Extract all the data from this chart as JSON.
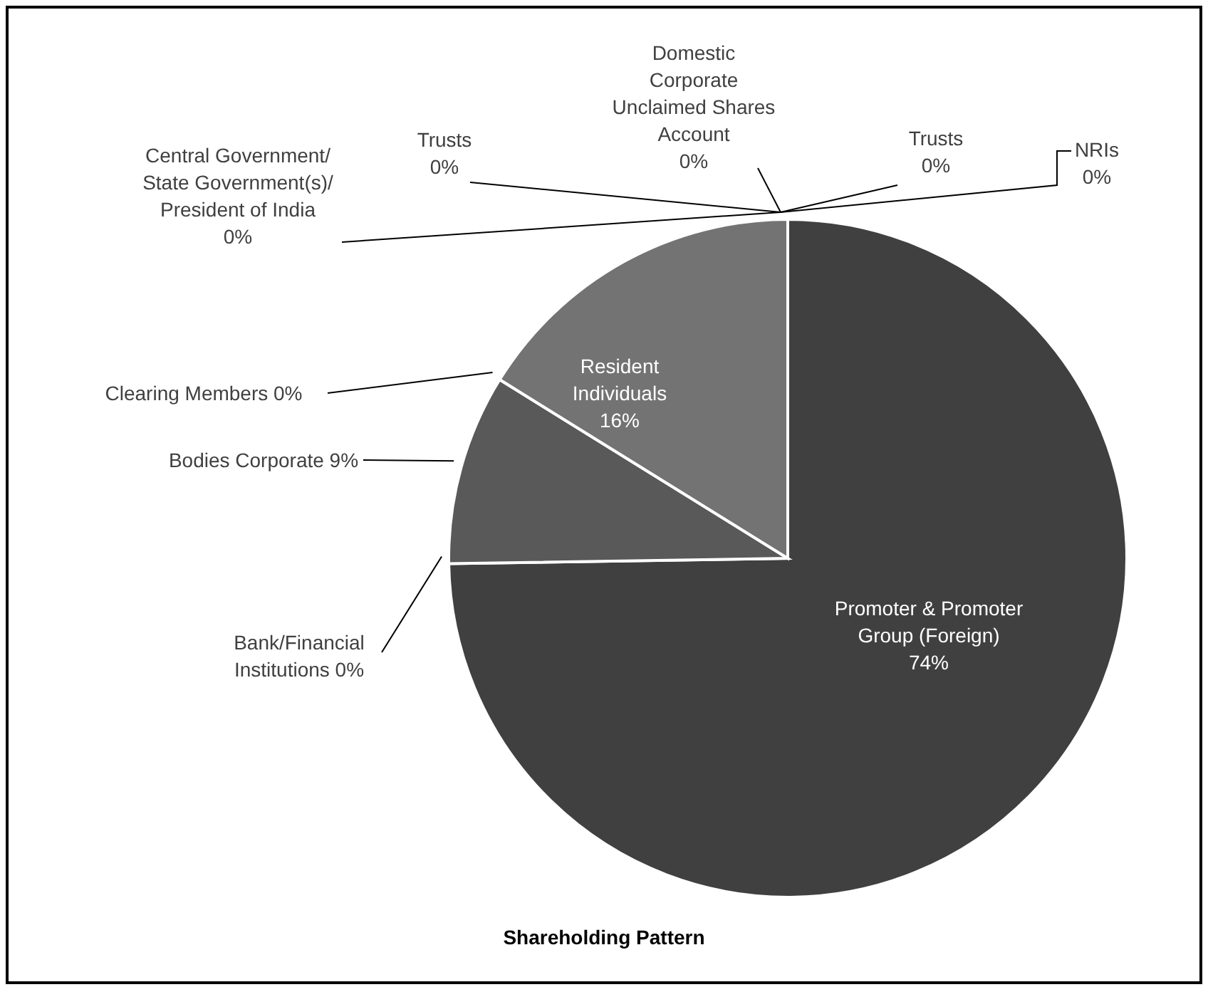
{
  "chart_data": {
    "type": "pie",
    "title": "Shareholding Pattern",
    "categories": [
      "Promoter & Promoter Group (Foreign)",
      "Bank/Financial Institutions",
      "Bodies Corporate",
      "Clearing Members",
      "Resident Individuals",
      "Central Government/ State Government(s)/ President of India",
      "Trusts",
      "Domestic Corporate Unclaimed Shares Account",
      "Trusts",
      "NRIs"
    ],
    "values": [
      74,
      0,
      9,
      0,
      16,
      0,
      0,
      0,
      0,
      0
    ],
    "value_labels": [
      "74%",
      "0%",
      "9%",
      "0%",
      "16%",
      "0%",
      "0%",
      "0%",
      "0%",
      "0%"
    ],
    "colors": [
      "#404040",
      "#4d4d4d",
      "#595959",
      "#666666",
      "#737373",
      "#808080",
      "#8c8c8c",
      "#999999",
      "#a6a6a6",
      "#b3b3b3"
    ]
  }
}
